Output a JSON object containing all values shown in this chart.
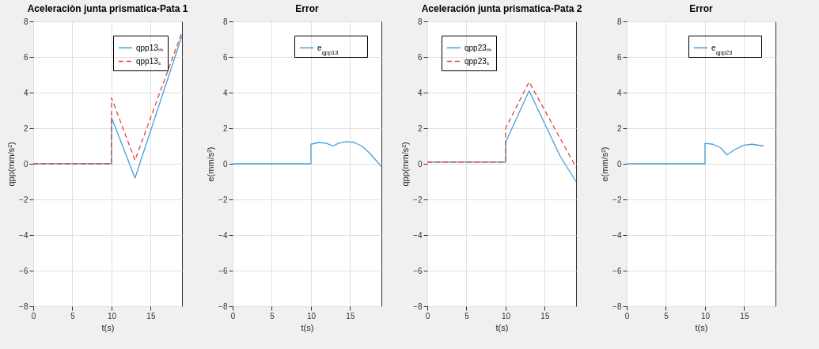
{
  "chart_data": [
    {
      "type": "line",
      "title": "Aceleraciòn junta prismatica-Pata 1",
      "xlabel": "t(s)",
      "ylabel": "qpp(mm/s²)",
      "xlim": [
        0,
        19
      ],
      "xticks": [
        0,
        5,
        10,
        15
      ],
      "ylim": [
        -8,
        8
      ],
      "yticks": [
        -8,
        -6,
        -4,
        -2,
        0,
        2,
        4,
        6,
        8
      ],
      "grid": true,
      "legend": "top right",
      "series": [
        {
          "name": "qpp13ₘ",
          "color": "#4a9fd8",
          "line_style": "solid",
          "x": [
            0,
            10,
            10,
            13,
            19
          ],
          "values": [
            0,
            0,
            2.6,
            -0.8,
            7.2
          ]
        },
        {
          "name": "qpp13ₛ",
          "color": "#e8413c",
          "line_style": "dashed",
          "x": [
            0,
            10,
            10,
            13,
            19
          ],
          "values": [
            0,
            0,
            3.7,
            0.2,
            7.4
          ]
        }
      ]
    },
    {
      "type": "line",
      "title": "Error",
      "xlabel": "t(s)",
      "ylabel": "e(mm/s²)",
      "xlim": [
        0,
        19
      ],
      "xticks": [
        0,
        5,
        10,
        15
      ],
      "ylim": [
        -8,
        8
      ],
      "yticks": [
        -8,
        -6,
        -4,
        -2,
        0,
        2,
        4,
        6,
        8
      ],
      "grid": true,
      "legend": "top right",
      "series": [
        {
          "name": "e$_{qpp13}$",
          "color": "#4a9fd8",
          "line_style": "solid",
          "x": [
            0,
            10,
            10,
            11,
            12,
            12.8,
            13.5,
            14.5,
            15.5,
            16.5,
            17.5,
            18.5,
            19
          ],
          "values": [
            0,
            0,
            1.1,
            1.2,
            1.15,
            1.0,
            1.15,
            1.25,
            1.2,
            1.0,
            0.6,
            0.1,
            -0.15
          ]
        }
      ]
    },
    {
      "type": "line",
      "title": "Aceleración junta prismatica-Pata 2",
      "xlabel": "t(s)",
      "ylabel": "qpp(mm/s²)",
      "xlim": [
        0,
        19
      ],
      "xticks": [
        0,
        5,
        10,
        15
      ],
      "ylim": [
        -8,
        8
      ],
      "yticks": [
        -8,
        -6,
        -4,
        -2,
        0,
        2,
        4,
        6,
        8
      ],
      "grid": true,
      "legend": "top left",
      "series": [
        {
          "name": "qpp23ₘ",
          "color": "#4a9fd8",
          "line_style": "solid",
          "x": [
            0,
            10,
            10,
            13,
            17,
            19
          ],
          "values": [
            0.1,
            0.1,
            1.2,
            4.1,
            0.4,
            -1.0
          ]
        },
        {
          "name": "qpp23ₛ",
          "color": "#e8413c",
          "line_style": "dashed",
          "x": [
            0,
            10,
            10,
            13,
            19
          ],
          "values": [
            0.1,
            0.1,
            2.0,
            4.6,
            -0.2
          ]
        }
      ]
    },
    {
      "type": "line",
      "title": "Error",
      "xlabel": "t(s)",
      "ylabel": "e(mm/s²)",
      "xlim": [
        0,
        19
      ],
      "xticks": [
        0,
        5,
        10,
        15
      ],
      "ylim": [
        -8,
        8
      ],
      "yticks": [
        -8,
        -6,
        -4,
        -2,
        0,
        2,
        4,
        6,
        8
      ],
      "grid": true,
      "legend": "top right",
      "series": [
        {
          "name": "e$_{qpp23}$",
          "color": "#4a9fd8",
          "line_style": "solid",
          "x": [
            0,
            10,
            10,
            11,
            12,
            12.8,
            13.8,
            15,
            16,
            17.5
          ],
          "values": [
            0,
            0,
            1.15,
            1.1,
            0.9,
            0.5,
            0.8,
            1.05,
            1.1,
            1.0
          ]
        }
      ]
    }
  ]
}
